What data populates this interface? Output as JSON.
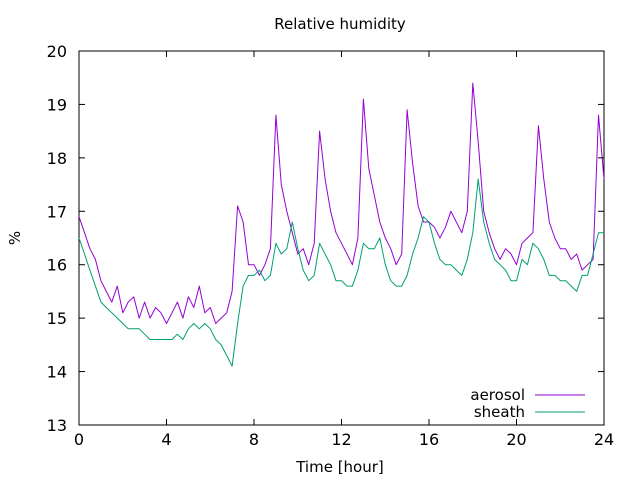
{
  "chart_data": {
    "type": "line",
    "title": "Relative humidity",
    "xlabel": "Time [hour]",
    "ylabel": "%",
    "xlim": [
      0,
      24
    ],
    "ylim": [
      13,
      20
    ],
    "xticks": [
      0,
      4,
      8,
      12,
      16,
      20,
      24
    ],
    "yticks": [
      13,
      14,
      15,
      16,
      17,
      18,
      19,
      20
    ],
    "grid": false,
    "legend_position": "bottom-right",
    "series": [
      {
        "name": "aerosol",
        "color": "#9400d3",
        "x": [
          0,
          0.25,
          0.5,
          0.75,
          1,
          1.25,
          1.5,
          1.75,
          2,
          2.25,
          2.5,
          2.75,
          3,
          3.25,
          3.5,
          3.75,
          4,
          4.25,
          4.5,
          4.75,
          5,
          5.25,
          5.5,
          5.75,
          6,
          6.25,
          6.5,
          6.75,
          7,
          7.25,
          7.5,
          7.75,
          8,
          8.25,
          8.5,
          8.75,
          9,
          9.25,
          9.5,
          9.75,
          10,
          10.25,
          10.5,
          10.75,
          11,
          11.25,
          11.5,
          11.75,
          12,
          12.25,
          12.5,
          12.75,
          13,
          13.25,
          13.5,
          13.75,
          14,
          14.25,
          14.5,
          14.75,
          15,
          15.25,
          15.5,
          15.75,
          16,
          16.25,
          16.5,
          16.75,
          17,
          17.25,
          17.5,
          17.75,
          18,
          18.25,
          18.5,
          18.75,
          19,
          19.25,
          19.5,
          19.75,
          20,
          20.25,
          20.5,
          20.75,
          21,
          21.25,
          21.5,
          21.75,
          22,
          22.25,
          22.5,
          22.75,
          23,
          23.25,
          23.5,
          23.75,
          24
        ],
        "values": [
          16.9,
          16.6,
          16.3,
          16.1,
          15.7,
          15.5,
          15.3,
          15.6,
          15.1,
          15.3,
          15.4,
          15.0,
          15.3,
          15.0,
          15.2,
          15.1,
          14.9,
          15.1,
          15.3,
          15.0,
          15.4,
          15.2,
          15.6,
          15.1,
          15.2,
          14.9,
          15.0,
          15.1,
          15.5,
          17.1,
          16.8,
          16.0,
          16.0,
          15.8,
          16.0,
          16.3,
          18.8,
          17.5,
          17.0,
          16.6,
          16.2,
          16.3,
          16.0,
          16.4,
          18.5,
          17.6,
          17.0,
          16.6,
          16.4,
          16.2,
          16.0,
          16.5,
          19.1,
          17.8,
          17.3,
          16.8,
          16.5,
          16.3,
          16.0,
          16.2,
          18.9,
          17.9,
          17.1,
          16.8,
          16.8,
          16.7,
          16.5,
          16.7,
          17.0,
          16.8,
          16.6,
          17.0,
          19.4,
          18.3,
          17.0,
          16.6,
          16.3,
          16.1,
          16.3,
          16.2,
          16.0,
          16.4,
          16.5,
          16.6,
          18.6,
          17.6,
          16.8,
          16.5,
          16.3,
          16.3,
          16.1,
          16.2,
          15.9,
          16.0,
          16.1,
          18.8,
          17.6
        ]
      },
      {
        "name": "sheath",
        "color": "#009e73",
        "x": [
          0,
          0.25,
          0.5,
          0.75,
          1,
          1.25,
          1.5,
          1.75,
          2,
          2.25,
          2.5,
          2.75,
          3,
          3.25,
          3.5,
          3.75,
          4,
          4.25,
          4.5,
          4.75,
          5,
          5.25,
          5.5,
          5.75,
          6,
          6.25,
          6.5,
          6.75,
          7,
          7.25,
          7.5,
          7.75,
          8,
          8.25,
          8.5,
          8.75,
          9,
          9.25,
          9.5,
          9.75,
          10,
          10.25,
          10.5,
          10.75,
          11,
          11.25,
          11.5,
          11.75,
          12,
          12.25,
          12.5,
          12.75,
          13,
          13.25,
          13.5,
          13.75,
          14,
          14.25,
          14.5,
          14.75,
          15,
          15.25,
          15.5,
          15.75,
          16,
          16.25,
          16.5,
          16.75,
          17,
          17.25,
          17.5,
          17.75,
          18,
          18.25,
          18.5,
          18.75,
          19,
          19.25,
          19.5,
          19.75,
          20,
          20.25,
          20.5,
          20.75,
          21,
          21.25,
          21.5,
          21.75,
          22,
          22.25,
          22.5,
          22.75,
          23,
          23.25,
          23.5,
          23.75,
          24
        ],
        "values": [
          16.5,
          16.2,
          15.9,
          15.6,
          15.3,
          15.2,
          15.1,
          15.0,
          14.9,
          14.8,
          14.8,
          14.8,
          14.7,
          14.6,
          14.6,
          14.6,
          14.6,
          14.6,
          14.7,
          14.6,
          14.8,
          14.9,
          14.8,
          14.9,
          14.8,
          14.6,
          14.5,
          14.3,
          14.1,
          14.9,
          15.6,
          15.8,
          15.8,
          15.9,
          15.7,
          15.8,
          16.4,
          16.2,
          16.3,
          16.8,
          16.3,
          15.9,
          15.7,
          15.8,
          16.4,
          16.2,
          16.0,
          15.7,
          15.7,
          15.6,
          15.6,
          15.9,
          16.4,
          16.3,
          16.3,
          16.5,
          16.0,
          15.7,
          15.6,
          15.6,
          15.8,
          16.2,
          16.5,
          16.9,
          16.8,
          16.4,
          16.1,
          16.0,
          16.0,
          15.9,
          15.8,
          16.1,
          16.6,
          17.6,
          16.8,
          16.4,
          16.1,
          16.0,
          15.9,
          15.7,
          15.7,
          16.1,
          16.0,
          16.4,
          16.3,
          16.1,
          15.8,
          15.8,
          15.7,
          15.7,
          15.6,
          15.5,
          15.8,
          15.8,
          16.2,
          16.6,
          16.6
        ]
      }
    ]
  }
}
